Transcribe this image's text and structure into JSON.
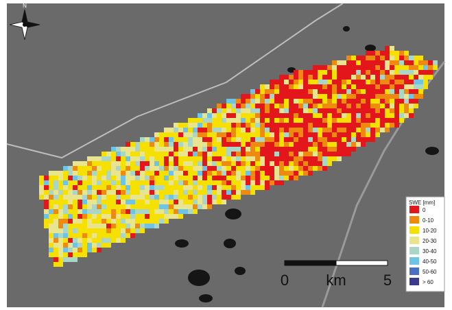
{
  "north_label": "N",
  "legend": {
    "title": "SWE [mm]",
    "items": [
      {
        "label": "0",
        "color": "#e3161b"
      },
      {
        "label": "0-10",
        "color": "#ef8a10"
      },
      {
        "label": "10-20",
        "color": "#f6e000"
      },
      {
        "label": "20-30",
        "color": "#e8e58e"
      },
      {
        "label": "30-40",
        "color": "#a9d6c6"
      },
      {
        "label": "40-50",
        "color": "#6fc3e4"
      },
      {
        "label": "50-60",
        "color": "#4b6fc2"
      },
      {
        "label": "> 60",
        "color": "#3b3b8e"
      }
    ]
  },
  "scale_bar": {
    "start": "0",
    "unit": "km",
    "end": "5"
  }
}
